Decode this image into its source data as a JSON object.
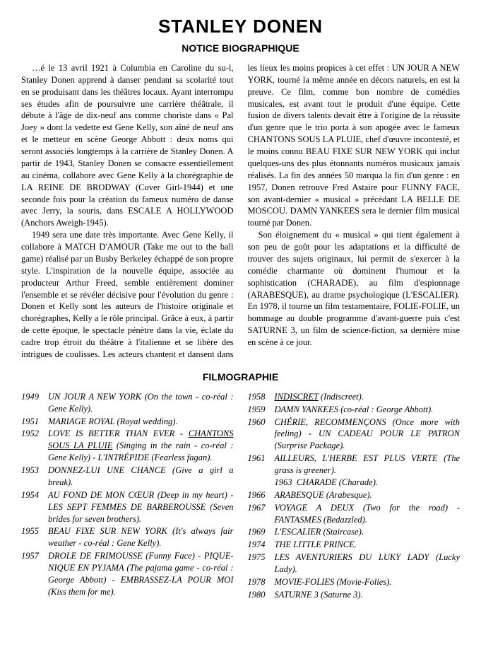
{
  "title": "STANLEY DONEN",
  "section_bio_title": "NOTICE BIOGRAPHIQUE",
  "section_filmo_title": "FILMOGRAPHIE",
  "bio_paragraphs": [
    "…é le 13 avril 1921 à Columbia en Caroline du su-l, Stanley Donen apprend à danser pendant sa scolarité tout en se produisant dans les théâtres locaux. Ayant interrompu ses études afin de poursuivre une carrière théâtrale, il débute à l'âge de dix-neuf ans comme choriste dans « Pal Joey » dont la vedette est Gene Kelly, son aîné de neuf ans et le metteur en scène George Abbott : deux noms qui seront associés longtemps à la carrière de Stanley Donen. A partir de 1943, Stanley Donen se consacre essentiellement au cinéma, collabore avec Gene Kelly à la chorégraphie de LA REINE DE BRODWAY (Cover Girl-1944) et une seconde fois pour la création du fameux numéro de danse avec Jerry, la souris, dans ESCALE A HOLLYWOOD (Anchors Aweigh-1945).",
    "1949 sera une date très importante. Avec Gene Kelly, il collabore à MATCH D'AMOUR (Take me out to the ball game) réalisé par un Busby Berkeley échappé de son propre style. L'inspiration de la nouvelle équipe, associée au producteur Arthur Freed, semble entièrement dominer l'ensemble et se révéler décisive pour l'évolution du genre : Donen et Kelly sont les auteurs de l'histoire originale et chorégraphes, Kelly a le rôle principal. Grâce à eux, à partir de cette époque, le spectacle pénètre dans la vie, éclate du cadre trop étroit du théâtre à l'italienne et se libère des intrigues de coulisses. Les acteurs chantent et dansent dans les lieux les moins propices à cet effet : UN JOUR A NEW YORK, tourné la même année en décors naturels, en est la preuve. Ce film, comme bon nombre de comédies musicales, est avant tout le produit d'une équipe. Cette fusion de divers talents devait être à l'origine de la réussite d'un genre que le trio porta à son apogée avec le fameux CHANTONS SOUS LA PLUIE, chef d'œuvre incontesté, et le moins connu BEAU FIXE SUR NEW YORK qui inclut quelques-uns des plus étonnants numéros musicaux jamais réalisés. La fin des années 50 marqua la fin d'un genre : en 1957, Donen retrouve Fred Astaire pour FUNNY FACE, son avant-dernier « musical » précédant LA BELLE DE MOSCOU. DAMN YANKEES sera le dernier film musical tourné par Donen.",
    "Son éloignement du « musical » qui tient également à son peu de goût pour les adaptations et la difficulté de trouver des sujets originaux, lui permit de s'exercer à la comédie charmante où dominent l'humour et la sophistication (CHARADE), au film d'espionnage (ARABESQUE), au drame psychologique (L'ESCALIER). En 1978, il tourne un film testamentaire, FOLIE-FOLIE, un hommage au double programme d'avant-guerre puis c'est SATURNE 3, un film de science-fiction, sa dernière mise en scène à ce jour."
  ],
  "filmo_left": [
    {
      "year": "1949",
      "html": "UN JOUR A NEW YORK (On the town - co-réal : Gene Kelly)."
    },
    {
      "year": "1951",
      "html": "MARIAGE ROYAL (Royal wedding)."
    },
    {
      "year": "1952",
      "html": "LOVE IS BETTER THAN EVER - <span class=\"underline\">CHANTONS SOUS LA PLUIE</span> (Singing in the rain - co-réal : Gene Kelly) - L'INTRÉPIDE (Fearless fagan)."
    },
    {
      "year": "1953",
      "html": "DONNEZ-LUI UNE CHANCE (Give a girl a break)."
    },
    {
      "year": "1954",
      "html": "AU FOND DE MON CŒUR (Deep in my heart) - LES SEPT FEMMES DE BARBEROUSSE (Seven brides for seven brothers)."
    },
    {
      "year": "1955",
      "html": "BEAU FIXE SUR NEW YORK (It's always fair weather - co-réal : Gene Kelly)."
    },
    {
      "year": "1957",
      "html": "DROLE DE FRIMOUSSE (Funny Face) - PIQUE-NIQUE EN PYJAMA (The pajama game - co-réal : George Abbott) - EMBRASSEZ-LA POUR MOI (Kiss them for me)."
    }
  ],
  "filmo_right": [
    {
      "year": "1958",
      "html": "<span class=\"underline\">INDISCRET</span> (Indiscreet)."
    },
    {
      "year": "1959",
      "html": "DAMN YANKEES (co-réal : George Abbott)."
    },
    {
      "year": "1960",
      "html": "CHÉRIE, RECOMMENÇONS (Once more with feeling) - UN CADEAU POUR LE PATRON (Surprise Package)."
    },
    {
      "year": "1961",
      "html": "AILLEURS, L'HERBE EST PLUS VERTE (The grass is greener).<br>1963&nbsp;&nbsp;CHARADE (Charade)."
    },
    {
      "year": "1966",
      "html": "ARABESQUE (Arabesque)."
    },
    {
      "year": "1967",
      "html": "VOYAGE A DEUX (Two for the road) - FANTASMES (Bedazzled)."
    },
    {
      "year": "1969",
      "html": "L'ESCALIER (Staircase)."
    },
    {
      "year": "1974",
      "html": "THE LITTLE PRINCE."
    },
    {
      "year": "1975",
      "html": "LES AVENTURIERS DU LUKY LADY (Lucky Lady)."
    },
    {
      "year": "1978",
      "html": "MOVIE-FOLIES (Movie-Folies)."
    },
    {
      "year": "1980",
      "html": "SATURNE 3 (Saturne 3)."
    }
  ]
}
